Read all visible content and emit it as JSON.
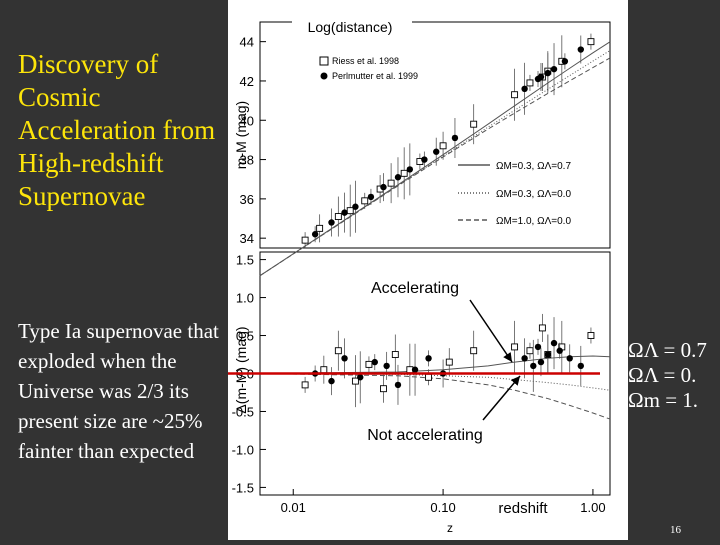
{
  "slide": {
    "title": "Discovery of Cosmic Acceleration from High-redshift Supernovae",
    "body": "Type Ia supernovae that exploded when the Universe was 2/3 its present size are ~25% fainter than expected",
    "page_number": "16",
    "right_labels": [
      "ΩΛ = 0.7",
      "ΩΛ = 0.",
      "Ωm = 1."
    ]
  },
  "chart_data": [
    {
      "type": "scatter",
      "title": "Log(distance)",
      "ylabel": "m-M (mag)",
      "xscale": "log",
      "xlim": [
        0.006,
        1.3
      ],
      "ylim": [
        33.5,
        45
      ],
      "yticks": [
        "34",
        "36",
        "38",
        "40",
        "42",
        "44"
      ],
      "legend_position": "top-left",
      "series": [
        {
          "name": "Riess et al. 1998",
          "marker": "open-square",
          "x": [
            0.012,
            0.015,
            0.02,
            0.024,
            0.03,
            0.038,
            0.045,
            0.055,
            0.07,
            0.1,
            0.16,
            0.3,
            0.38,
            0.46,
            0.5,
            0.62,
            0.97
          ],
          "y": [
            33.9,
            34.5,
            35.1,
            35.4,
            35.9,
            36.5,
            36.8,
            37.3,
            37.9,
            38.7,
            39.8,
            41.3,
            41.9,
            42.2,
            42.5,
            43.0,
            44.0
          ]
        },
        {
          "name": "Perlmutter et al. 1999",
          "marker": "filled-circle",
          "x": [
            0.014,
            0.018,
            0.022,
            0.026,
            0.033,
            0.04,
            0.05,
            0.06,
            0.075,
            0.09,
            0.12,
            0.35,
            0.43,
            0.45,
            0.5,
            0.55,
            0.65,
            0.83
          ],
          "y": [
            34.2,
            34.8,
            35.3,
            35.6,
            36.1,
            36.6,
            37.1,
            37.5,
            38.0,
            38.4,
            39.1,
            41.6,
            42.1,
            42.2,
            42.4,
            42.6,
            43.0,
            43.6
          ]
        }
      ],
      "models": [
        {
          "name": "ΩM=0.3, ΩΛ=0.7",
          "style": "solid"
        },
        {
          "name": "ΩM=0.3, ΩΛ=0.0",
          "style": "dotted"
        },
        {
          "name": "ΩM=1.0, ΩΛ=0.0",
          "style": "dashed"
        }
      ]
    },
    {
      "type": "scatter",
      "xlabel": "z",
      "ylabel": "Δ(m-M) (mag)",
      "xscale": "log",
      "xlim": [
        0.006,
        1.3
      ],
      "ylim": [
        -1.6,
        1.6
      ],
      "xticks": [
        "0.01",
        "0.10",
        "1.00"
      ],
      "yticks": [
        "-1.5",
        "-1.0",
        "-0.5",
        "0.0",
        "0.5",
        "1.0",
        "1.5"
      ],
      "reference_line": {
        "y": 0.0,
        "color": "#cc0000"
      },
      "annotations": [
        "Accelerating",
        "Not accelerating",
        "redshift"
      ],
      "series": [
        {
          "name": "Riess et al. 1998",
          "marker": "open-square",
          "x": [
            0.012,
            0.016,
            0.02,
            0.026,
            0.032,
            0.04,
            0.048,
            0.06,
            0.08,
            0.11,
            0.16,
            0.3,
            0.38,
            0.46,
            0.5,
            0.62,
            0.97
          ],
          "y": [
            -0.15,
            0.05,
            0.3,
            -0.1,
            0.12,
            -0.2,
            0.25,
            0.05,
            -0.05,
            0.15,
            0.3,
            0.35,
            0.3,
            0.6,
            0.25,
            0.35,
            0.5
          ]
        },
        {
          "name": "Perlmutter et al. 1999",
          "marker": "filled-circle",
          "x": [
            0.014,
            0.018,
            0.022,
            0.028,
            0.035,
            0.042,
            0.05,
            0.065,
            0.08,
            0.1,
            0.35,
            0.4,
            0.43,
            0.45,
            0.5,
            0.55,
            0.6,
            0.7,
            0.83
          ],
          "y": [
            0.0,
            -0.1,
            0.2,
            -0.05,
            0.15,
            0.1,
            -0.15,
            0.05,
            0.2,
            0.0,
            0.2,
            0.1,
            0.35,
            0.15,
            0.25,
            0.4,
            0.3,
            0.2,
            0.1
          ]
        }
      ],
      "models": [
        {
          "name": "ΩM=0.3, ΩΛ=0.7",
          "style": "solid",
          "x": [
            0.006,
            0.05,
            0.1,
            0.2,
            0.3,
            0.5,
            0.7,
            1.0,
            1.3
          ],
          "y": [
            0.0,
            0.02,
            0.05,
            0.1,
            0.15,
            0.2,
            0.22,
            0.23,
            0.22
          ]
        },
        {
          "name": "ΩM=0.3, ΩΛ=0.0",
          "style": "dotted",
          "x": [
            0.006,
            0.05,
            0.1,
            0.2,
            0.3,
            0.5,
            0.7,
            1.0,
            1.3
          ],
          "y": [
            0.0,
            -0.01,
            -0.03,
            -0.05,
            -0.08,
            -0.12,
            -0.15,
            -0.19,
            -0.22
          ]
        },
        {
          "name": "ΩM=1.0, ΩΛ=0.0",
          "style": "dashed",
          "x": [
            0.006,
            0.05,
            0.1,
            0.2,
            0.3,
            0.5,
            0.7,
            1.0,
            1.3
          ],
          "y": [
            0.0,
            -0.03,
            -0.07,
            -0.15,
            -0.22,
            -0.33,
            -0.42,
            -0.52,
            -0.6
          ]
        }
      ]
    }
  ]
}
